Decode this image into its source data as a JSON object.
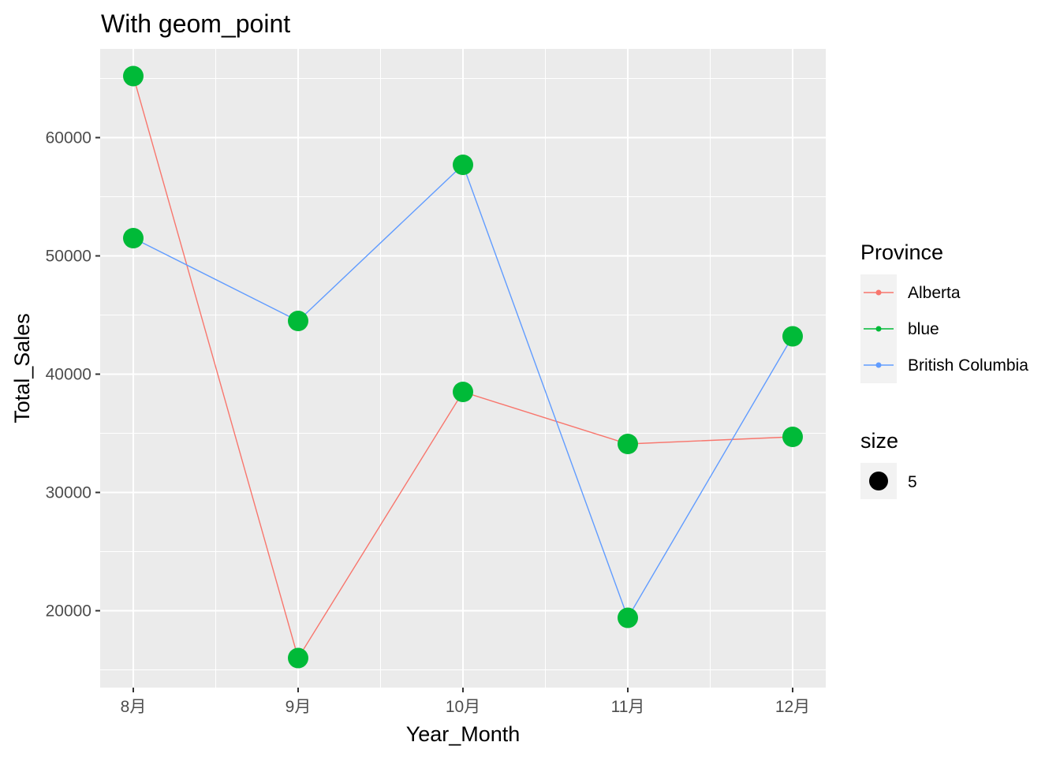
{
  "chart_data": {
    "type": "line",
    "title": "With geom_point",
    "xlabel": "Year_Month",
    "ylabel": "Total_Sales",
    "categories": [
      "8月",
      "9月",
      "10月",
      "11月",
      "12月"
    ],
    "yticks": [
      20000,
      30000,
      40000,
      50000,
      60000
    ],
    "ylim": [
      13500,
      67500
    ],
    "grid": true,
    "series": [
      {
        "name": "Alberta",
        "color": "#F8766D",
        "values": [
          65200,
          16000,
          38500,
          34100,
          34700
        ]
      },
      {
        "name": "British Columbia",
        "color": "#619CFF",
        "values": [
          51500,
          44500,
          57700,
          19400,
          43200
        ]
      }
    ],
    "points": {
      "color": "#00BA38",
      "size_value": "5"
    },
    "legends": [
      {
        "title": "Province",
        "placement": "right",
        "entries": [
          {
            "label": "Alberta",
            "color": "#F8766D"
          },
          {
            "label": "blue",
            "color": "#00BA38"
          },
          {
            "label": "British Columbia",
            "color": "#619CFF"
          }
        ]
      },
      {
        "title": "size",
        "placement": "right",
        "entries": [
          {
            "label": "5",
            "color": "#000000"
          }
        ]
      }
    ]
  }
}
